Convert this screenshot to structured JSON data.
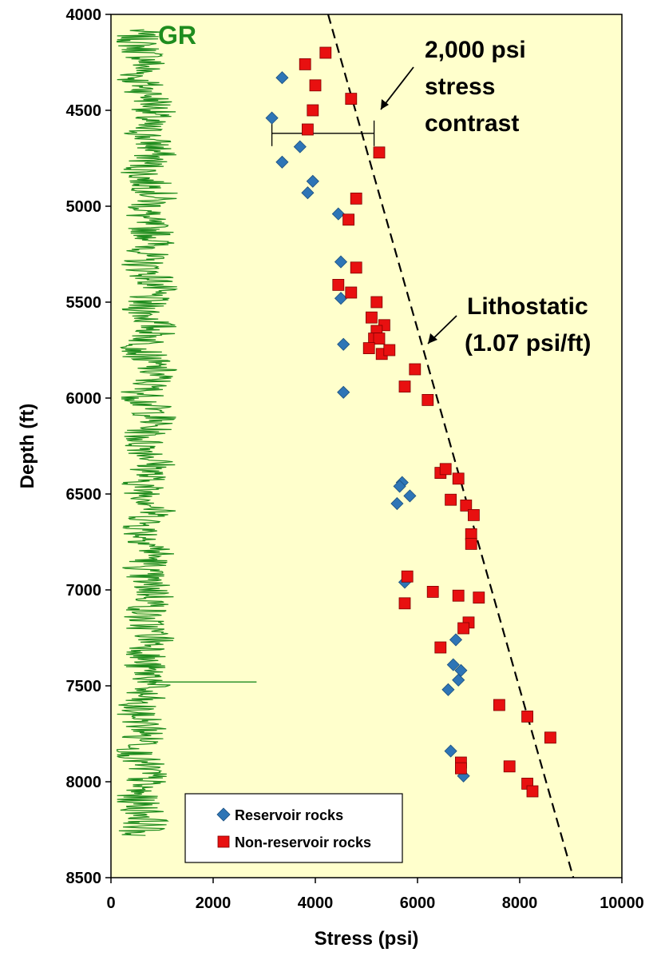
{
  "chart_data": {
    "type": "scatter",
    "xlabel": "Stress (psi)",
    "ylabel": "Depth (ft)",
    "xlim": [
      0,
      10000
    ],
    "ylim": [
      8500,
      4000
    ],
    "x_ticks": [
      "0",
      "2000",
      "4000",
      "6000",
      "8000",
      "10000"
    ],
    "y_ticks": [
      "4000",
      "4500",
      "5000",
      "5500",
      "6000",
      "6500",
      "7000",
      "7500",
      "8000",
      "8500"
    ],
    "grid": false,
    "legend_position": "bottom-left",
    "colors": {
      "plot_background": "#FFFFCC",
      "reservoir": "#2E75B6",
      "non_reservoir": "#E81010",
      "gr_log": "#1E8C1E"
    },
    "series": [
      {
        "name": "Reservoir rocks",
        "marker": "diamond",
        "x": [
          3350,
          3150,
          3700,
          3350,
          3950,
          3850,
          4450,
          4500,
          4500,
          4550,
          4550,
          5700,
          5650,
          5850,
          5600,
          5750,
          6750,
          6700,
          6850,
          6800,
          6600,
          6650,
          6900
        ],
        "y": [
          4330,
          4540,
          4690,
          4770,
          4870,
          4930,
          5040,
          5290,
          5480,
          5720,
          5970,
          6440,
          6460,
          6510,
          6550,
          6960,
          7260,
          7390,
          7420,
          7470,
          7520,
          7840,
          7970
        ]
      },
      {
        "name": "Non-reservoir rocks",
        "marker": "square",
        "x": [
          4200,
          3800,
          4000,
          4700,
          3950,
          3850,
          5250,
          4800,
          4650,
          4800,
          4450,
          4700,
          5200,
          5100,
          5350,
          5200,
          5150,
          5250,
          5050,
          5300,
          5450,
          5950,
          5750,
          6200,
          6450,
          6550,
          6800,
          6950,
          6650,
          7100,
          7050,
          7050,
          5800,
          6300,
          6800,
          7200,
          5750,
          7000,
          6900,
          6450,
          7600,
          8150,
          8600,
          6850,
          6850,
          7800,
          8150,
          8250
        ],
        "y": [
          4200,
          4260,
          4370,
          4440,
          4500,
          4600,
          4720,
          4960,
          5070,
          5320,
          5410,
          5450,
          5500,
          5580,
          5620,
          5650,
          5690,
          5690,
          5740,
          5770,
          5750,
          5850,
          5940,
          6010,
          6390,
          6370,
          6420,
          6560,
          6530,
          6610,
          6710,
          6760,
          6930,
          7010,
          7030,
          7040,
          7070,
          7170,
          7200,
          7300,
          7600,
          7660,
          7770,
          7900,
          7930,
          7920,
          8010,
          8050
        ]
      }
    ],
    "lines": [
      {
        "name": "Lithostatic (1.07 psi/ft)",
        "style": "dashed",
        "x": [
          4250,
          9050
        ],
        "y": [
          4000,
          8500
        ]
      }
    ],
    "gr_log": {
      "label": "GR",
      "depth_range": [
        4080,
        8280
      ],
      "baseline_psi": 750,
      "spike": {
        "depth": 7480,
        "x": 2850
      }
    },
    "contrast_bar": {
      "depth": 4620,
      "x_range": [
        3150,
        5150
      ]
    },
    "annotations": {
      "contrast": [
        "2,000 psi",
        "stress",
        "contrast"
      ],
      "lithostatic": [
        "Lithostatic",
        "(1.07 psi/ft)"
      ]
    }
  }
}
